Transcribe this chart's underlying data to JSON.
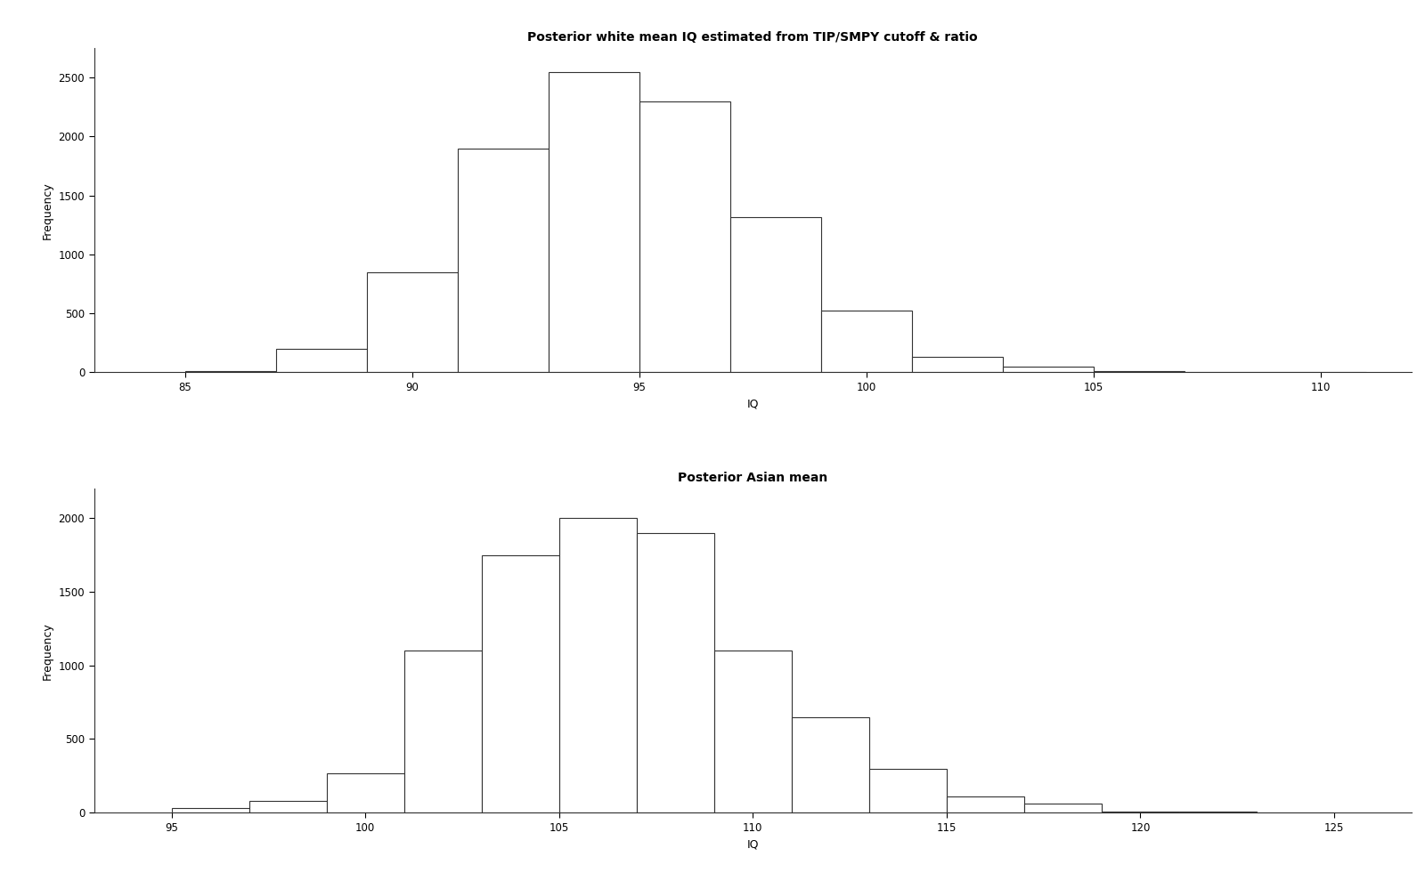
{
  "white_title": "Posterior white mean IQ estimated from TIP/SMPY cutoff & ratio",
  "asian_title": "Posterior Asian mean",
  "xlabel": "IQ",
  "ylabel": "Frequency",
  "white_bin_edges": [
    85,
    87,
    89,
    91,
    93,
    95,
    97,
    99,
    101,
    103,
    105,
    107,
    109,
    111
  ],
  "white_counts": [
    10,
    200,
    850,
    1900,
    2550,
    2300,
    1320,
    520,
    130,
    50,
    10,
    5,
    2
  ],
  "white_xlim": [
    83,
    112
  ],
  "white_ylim": [
    0,
    2750
  ],
  "white_yticks": [
    0,
    500,
    1000,
    1500,
    2000,
    2500
  ],
  "white_xticks": [
    85,
    90,
    95,
    100,
    105,
    110
  ],
  "asian_bin_edges": [
    95,
    97,
    99,
    101,
    103,
    105,
    107,
    109,
    111,
    113,
    115,
    117,
    119,
    121,
    123,
    125
  ],
  "asian_counts": [
    30,
    80,
    270,
    1100,
    1750,
    2000,
    1900,
    1100,
    650,
    300,
    110,
    60,
    10,
    5,
    2
  ],
  "asian_xlim": [
    93,
    127
  ],
  "asian_ylim": [
    0,
    2200
  ],
  "asian_yticks": [
    0,
    500,
    1000,
    1500,
    2000
  ],
  "asian_xticks": [
    95,
    100,
    105,
    110,
    115,
    120,
    125
  ],
  "bg_color": "#ffffff",
  "bar_facecolor": "#ffffff",
  "bar_edgecolor": "#333333",
  "bar_linewidth": 0.8,
  "title_fontsize": 10,
  "axis_label_fontsize": 9,
  "tick_fontsize": 8.5
}
